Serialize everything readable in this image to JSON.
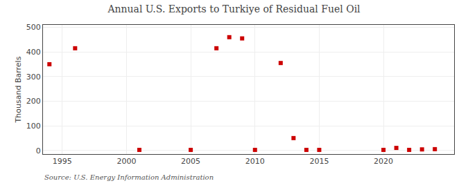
{
  "chart_data": {
    "type": "scatter",
    "title": "Annual U.S. Exports to Turkiye of Residual Fuel Oil",
    "ylabel": "Thousand Barrels",
    "annotations": [
      "Source: U.S. Energy Information Administration"
    ],
    "x": [
      1994,
      1996,
      2001,
      2005,
      2007,
      2008,
      2009,
      2010,
      2012,
      2013,
      2014,
      2015,
      2020,
      2021,
      2022,
      2023,
      2024
    ],
    "values": [
      350,
      415,
      2,
      2,
      415,
      460,
      455,
      2,
      355,
      50,
      2,
      2,
      2,
      10,
      2,
      4,
      5
    ],
    "color": "#cc0000",
    "marker": "square",
    "xlim": [
      1993.5,
      2025.5
    ],
    "ylim": [
      -15,
      510
    ],
    "xticks": [
      1995,
      2000,
      2005,
      2010,
      2015,
      2020
    ],
    "yticks": [
      0,
      100,
      200,
      300,
      400,
      500
    ],
    "grid": true
  }
}
